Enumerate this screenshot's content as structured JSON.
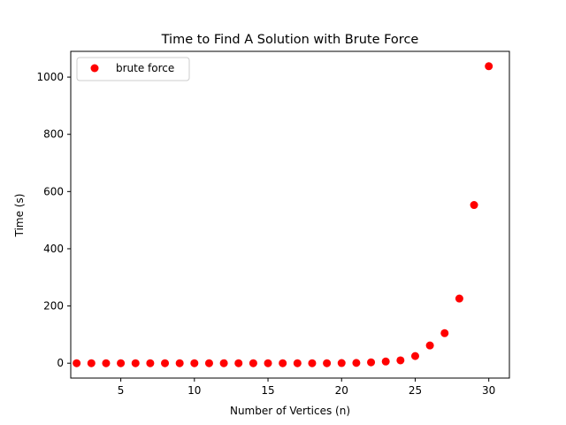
{
  "chart_data": {
    "type": "scatter",
    "title": "Time to Find A Solution with Brute Force",
    "xlabel": "Number of Vertices (n)",
    "ylabel": "Time (s)",
    "xlim": [
      1.6,
      31.4
    ],
    "ylim": [
      -52,
      1090
    ],
    "xticks": [
      5,
      10,
      15,
      20,
      25,
      30
    ],
    "yticks": [
      0,
      200,
      400,
      600,
      800,
      1000
    ],
    "grid": false,
    "legend_position": "upper-left",
    "series": [
      {
        "name": "brute force",
        "color": "#ff0000",
        "x": [
          2,
          3,
          4,
          5,
          6,
          7,
          8,
          9,
          10,
          11,
          12,
          13,
          14,
          15,
          16,
          17,
          18,
          19,
          20,
          21,
          22,
          23,
          24,
          25,
          26,
          27,
          28,
          29,
          30
        ],
        "y": [
          0,
          0,
          0,
          0,
          0,
          0,
          0,
          0,
          0,
          0,
          0,
          0,
          0,
          0,
          0,
          0,
          0,
          0,
          0.5,
          1,
          3,
          6,
          10,
          25,
          62,
          105,
          226,
          553,
          1038
        ]
      }
    ]
  }
}
